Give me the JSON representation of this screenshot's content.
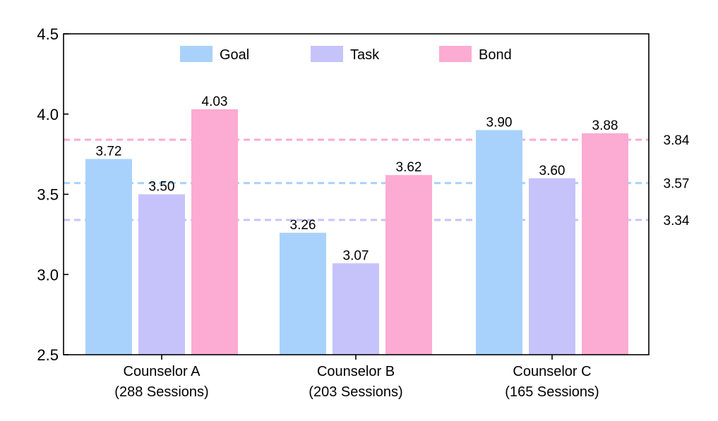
{
  "chart_data": {
    "type": "bar",
    "title": "",
    "xlabel": "",
    "ylabel": "",
    "ylim": [
      2.5,
      4.5
    ],
    "yticks": [
      2.5,
      3.0,
      3.5,
      4.0,
      4.5
    ],
    "ytick_labels": [
      "2.5",
      "3.0",
      "3.5",
      "4.0",
      "4.5"
    ],
    "categories": [
      [
        "Counselor A",
        "(288 Sessions)"
      ],
      [
        "Counselor B",
        "(203 Sessions)"
      ],
      [
        "Counselor C",
        "(165 Sessions)"
      ]
    ],
    "series": [
      {
        "name": "Goal",
        "color": "#a8d2fc",
        "values": [
          3.72,
          3.26,
          3.9
        ],
        "labels": [
          "3.72",
          "3.26",
          "3.90"
        ]
      },
      {
        "name": "Task",
        "color": "#c6c3fb",
        "values": [
          3.5,
          3.07,
          3.6
        ],
        "labels": [
          "3.50",
          "3.07",
          "3.60"
        ]
      },
      {
        "name": "Bond",
        "color": "#fcabd2",
        "values": [
          4.03,
          3.62,
          3.88
        ],
        "labels": [
          "4.03",
          "3.62",
          "3.88"
        ]
      }
    ],
    "reference_lines": [
      {
        "series": "Bond",
        "value": 3.84,
        "label": "3.84",
        "color": "#fcabd2"
      },
      {
        "series": "Goal",
        "value": 3.57,
        "label": "3.57",
        "color": "#a8d2fc"
      },
      {
        "series": "Task",
        "value": 3.34,
        "label": "3.34",
        "color": "#c6c3fb"
      }
    ],
    "legend": "top-center",
    "grid": false
  }
}
